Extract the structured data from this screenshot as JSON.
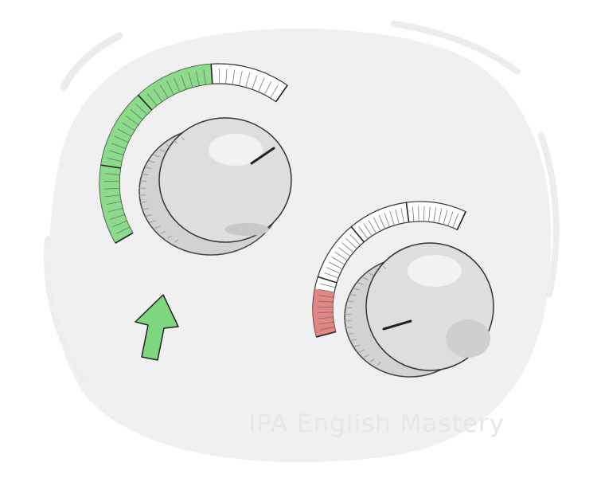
{
  "illustration": {
    "subject": "two control knobs with level arcs and an up arrow",
    "knob_left": {
      "arc_color": "#7ed77e",
      "level": 0.75
    },
    "knob_right": {
      "arc_color": "#e07878",
      "level": 0.2
    },
    "arrow": {
      "direction": "up",
      "color": "#7ed77e"
    }
  },
  "watermark": "IPA English Mastery"
}
